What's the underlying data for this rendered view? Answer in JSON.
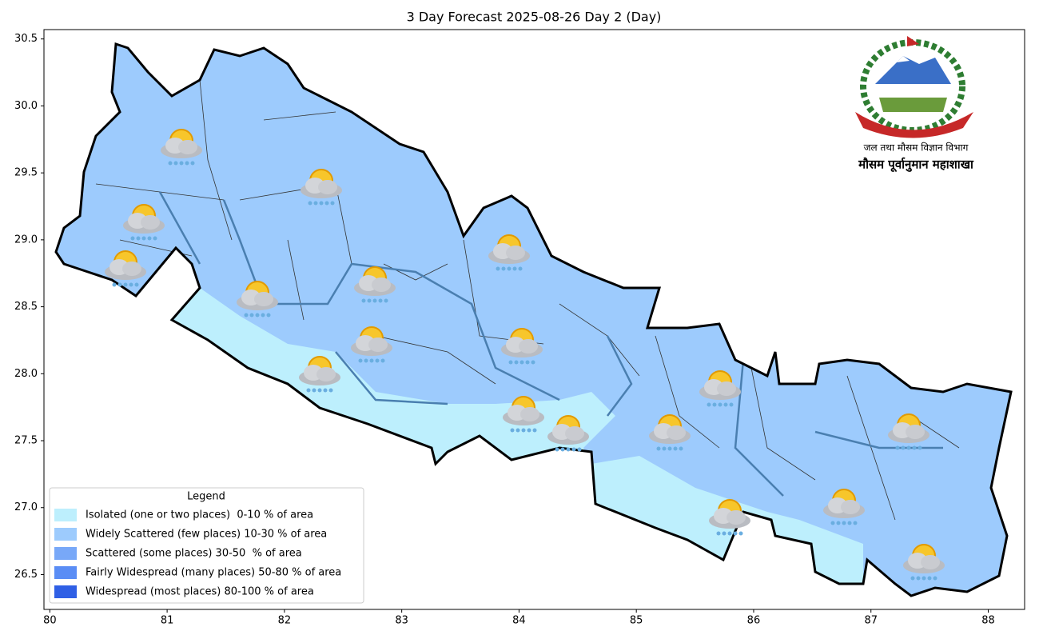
{
  "chart_data": {
    "type": "map",
    "title": "3 Day Forecast 2025-08-26 Day 2 (Day)",
    "xlim": [
      79.95,
      88.31
    ],
    "ylim": [
      26.24,
      30.57
    ],
    "xticks": [
      80,
      81,
      82,
      83,
      84,
      85,
      86,
      87,
      88
    ],
    "yticks": [
      26.5,
      {
        "value": 27,
        "label": "27.0"
      },
      27.5,
      {
        "value": 28,
        "label": "28.0"
      },
      28.5,
      {
        "value": 29,
        "label": "29.0"
      },
      29.5,
      {
        "value": 30,
        "label": "30.0"
      },
      30.5
    ],
    "legend": {
      "title": "Legend",
      "position": "lower left",
      "items": [
        {
          "name": "Isolated (one or two places)  0-10 % of area",
          "color": "#bdeffd"
        },
        {
          "name": "Widely Scattered (few places) 10-30 % of area",
          "color": "#9dcbfd"
        },
        {
          "name": "Scattered (some places) 30-50  % of area",
          "color": "#78a8f8"
        },
        {
          "name": "Fairly Widespread (many places) 50-80 % of area",
          "color": "#5a8df5"
        },
        {
          "name": "Widespread (most places) 80-100 % of area",
          "color": "#2f5fe5"
        }
      ]
    },
    "emblem": {
      "line1": "जल तथा मौसम विज्ञान विभाग",
      "line2": "मौसम पूर्वानुमान महाशाखा"
    }
  }
}
